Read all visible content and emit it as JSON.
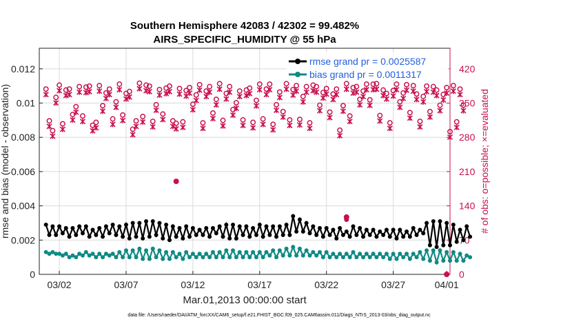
{
  "title_line1": "Southern Hemisphere 42083 / 42302 = 99.482%",
  "title_line2": "AIRS_SPECIFIC_HUMIDITY @ 55 hPa",
  "xlabel": "Mar.01,2013 00:00:00 start",
  "ylabel_left": "rmse and bias (model - observation)",
  "ylabel_right": "# of obs: o=possible; ×=evaluated",
  "legend": {
    "rmse": "rmse grand pr = 0.0025587",
    "bias": "bias grand pr = 0.0011317"
  },
  "footnote": "data file: /Users/raeder/DAI/ATM_forcXX/CAM6_setup/f.e21.FHIST_BGC.f09_025.CAM6assim.011/Diags_NTrS_2013-03/obs_diag_output.nc",
  "colors": {
    "rmse": "#000000",
    "bias": "#0f8a84",
    "obs": "#c8104f"
  },
  "chart_data": {
    "type": "line",
    "x_range": [
      0.5,
      31.25
    ],
    "xticks": [
      {
        "x": 2,
        "label": "03/02"
      },
      {
        "x": 7,
        "label": "03/07"
      },
      {
        "x": 12,
        "label": "03/12"
      },
      {
        "x": 17,
        "label": "03/17"
      },
      {
        "x": 22,
        "label": "03/22"
      },
      {
        "x": 27,
        "label": "03/27"
      },
      {
        "x": 31,
        "label": "04/01"
      }
    ],
    "y_left": {
      "range": [
        0,
        0.0132
      ],
      "ticks": [
        0,
        0.002,
        0.004,
        0.006,
        0.008,
        0.01,
        0.012
      ],
      "tick_labels": [
        "0",
        "0.002",
        "0.004",
        "0.006",
        "0.008",
        "0.01",
        "0.012"
      ]
    },
    "y_right": {
      "range": [
        0,
        462
      ],
      "ticks": [
        0,
        70,
        140,
        210,
        280,
        350,
        420
      ],
      "tick_labels": [
        "0",
        "70",
        "140",
        "210",
        "280",
        "350",
        "420"
      ]
    },
    "grid": true,
    "legend_position": "top-right",
    "series": [
      {
        "name": "rmse grand pr = 0.0025587",
        "axis": "left",
        "marker": "filled-circle",
        "start_x": 1.0,
        "step_x": 0.25,
        "values": [
          0.0029,
          0.0023,
          0.0028,
          0.0023,
          0.0028,
          0.0024,
          0.0027,
          0.0022,
          0.0027,
          0.0023,
          0.0028,
          0.0024,
          0.0028,
          0.0022,
          0.0026,
          0.0023,
          0.0027,
          0.0022,
          0.0028,
          0.0024,
          0.0029,
          0.0023,
          0.0028,
          0.0022,
          0.0029,
          0.0021,
          0.003,
          0.0022,
          0.003,
          0.0021,
          0.0031,
          0.0022,
          0.0031,
          0.0023,
          0.003,
          0.0021,
          0.0029,
          0.002,
          0.0028,
          0.0022,
          0.0027,
          0.0021,
          0.0028,
          0.0022,
          0.0027,
          0.0023,
          0.0026,
          0.0023,
          0.0027,
          0.0022,
          0.0027,
          0.0024,
          0.0028,
          0.0022,
          0.0029,
          0.0021,
          0.0029,
          0.0021,
          0.0028,
          0.0023,
          0.0028,
          0.0022,
          0.0027,
          0.0023,
          0.0029,
          0.0022,
          0.0028,
          0.0023,
          0.0028,
          0.0022,
          0.0028,
          0.0023,
          0.0029,
          0.0023,
          0.0034,
          0.0025,
          0.0032,
          0.0025,
          0.003,
          0.0024,
          0.0028,
          0.0023,
          0.0027,
          0.0022,
          0.0027,
          0.0023,
          0.0026,
          0.0021,
          0.0027,
          0.0023,
          0.0025,
          0.0022,
          0.0028,
          0.0023,
          0.0027,
          0.0022,
          0.0026,
          0.0023,
          0.0026,
          0.0022,
          0.0025,
          0.0023,
          0.0026,
          0.0022,
          0.0026,
          0.0021,
          0.0026,
          0.0022,
          0.0025,
          0.0022,
          0.0027,
          0.0023,
          0.0026,
          0.0024,
          0.003,
          0.0017,
          0.0031,
          0.0016,
          0.0031,
          0.0017,
          0.003,
          0.0017,
          0.0029,
          0.0019,
          0.0026,
          0.002,
          0.0028,
          0.0022
        ],
        "outlier": {
          "x": 23.5,
          "value": 0.0032
        }
      },
      {
        "name": "bias grand pr = 0.0011317",
        "axis": "left",
        "marker": "filled-circle",
        "start_x": 1.0,
        "step_x": 0.25,
        "values": [
          0.0013,
          0.0012,
          0.0013,
          0.0012,
          0.0012,
          0.0011,
          0.0012,
          0.001,
          0.0011,
          0.001,
          0.0012,
          0.0011,
          0.0013,
          0.0011,
          0.0012,
          0.001,
          0.0012,
          0.001,
          0.0012,
          0.0011,
          0.0012,
          0.001,
          0.0013,
          0.001,
          0.0014,
          0.001,
          0.0014,
          0.001,
          0.0015,
          0.0009,
          0.0014,
          0.0009,
          0.0015,
          0.001,
          0.0014,
          0.0009,
          0.0013,
          0.0009,
          0.0013,
          0.001,
          0.0012,
          0.0009,
          0.0013,
          0.001,
          0.0012,
          0.001,
          0.0012,
          0.001,
          0.0012,
          0.001,
          0.0013,
          0.001,
          0.0013,
          0.001,
          0.0014,
          0.001,
          0.0014,
          0.001,
          0.0013,
          0.001,
          0.0013,
          0.001,
          0.0013,
          0.001,
          0.0013,
          0.001,
          0.0013,
          0.0011,
          0.0014,
          0.001,
          0.0014,
          0.0011,
          0.0015,
          0.0011,
          0.0016,
          0.0011,
          0.0015,
          0.0011,
          0.0014,
          0.0011,
          0.0013,
          0.0011,
          0.0013,
          0.001,
          0.0013,
          0.001,
          0.0012,
          0.001,
          0.0012,
          0.001,
          0.0012,
          0.001,
          0.0013,
          0.001,
          0.0012,
          0.001,
          0.0012,
          0.001,
          0.0012,
          0.001,
          0.0012,
          0.001,
          0.0012,
          0.0009,
          0.0012,
          0.0009,
          0.0012,
          0.001,
          0.0012,
          0.0009,
          0.0012,
          0.001,
          0.0013,
          0.0009,
          0.0014,
          0.0008,
          0.0014,
          0.0007,
          0.0014,
          0.0008,
          0.0013,
          0.0008,
          0.0013,
          0.0008,
          0.0012,
          0.0008,
          0.0011,
          0.001
        ]
      },
      {
        "name": "obs possible / evaluated",
        "axis": "right",
        "marker": "circle-and-x",
        "start_x": 1.0,
        "step_x": 0.25,
        "values": [
          373,
          308,
          288,
          356,
          381,
          302,
          371,
          373,
          321,
          337,
          378,
          318,
          377,
          379,
          299,
          305,
          380,
          339,
          365,
          373,
          312,
          347,
          383,
          320,
          364,
          368,
          291,
          308,
          385,
          317,
          381,
          379,
          307,
          341,
          372,
          322,
          375,
          379,
          308,
          303,
          374,
          306,
          370,
          376,
          342,
          361,
          382,
          304,
          369,
          378,
          324,
          352,
          384,
          309,
          364,
          378,
          331,
          345,
          369,
          310,
          371,
          375,
          305,
          350,
          383,
          312,
          373,
          383,
          301,
          341,
          367,
          327,
          384,
          310,
          372,
          380,
          311,
          358,
          378,
          304,
          381,
          378,
          340,
          366,
          374,
          326,
          363,
          373,
          289,
          339,
          384,
          318,
          376,
          378,
          352,
          369,
          383,
          351,
          383,
          384,
          319,
          371,
          364,
          304,
          370,
          383,
          347,
          365,
          382,
          325,
          380,
          363,
          307,
          358,
          379,
          327,
          378,
          371,
          340,
          362,
          376,
          286,
          380,
          306,
          373,
          340
        ],
        "outlier": {
          "x": 10.75,
          "value": 190
        },
        "extra": [
          {
            "x": 23.5,
            "value": 117
          },
          {
            "x": 31.0,
            "value": 0
          }
        ]
      }
    ]
  }
}
